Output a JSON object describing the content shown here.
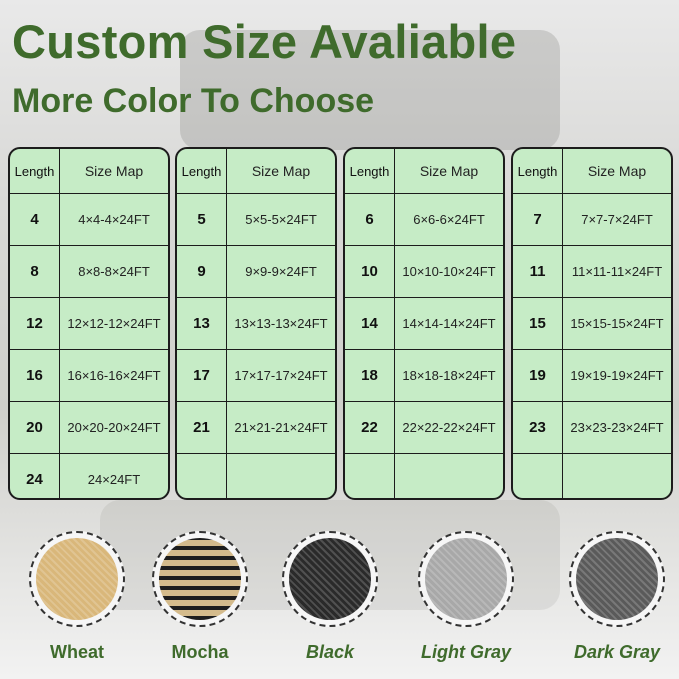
{
  "header": {
    "title": "Custom Size Avaliable",
    "subtitle": "More Color To Choose"
  },
  "tables": [
    {
      "head": [
        "Length",
        "Size Map"
      ],
      "rows": [
        [
          "4",
          "4×4-4×24FT"
        ],
        [
          "8",
          "8×8-8×24FT"
        ],
        [
          "12",
          "12×12-12×24FT"
        ],
        [
          "16",
          "16×16-16×24FT"
        ],
        [
          "20",
          "20×20-20×24FT"
        ],
        [
          "24",
          "24×24FT"
        ]
      ]
    },
    {
      "head": [
        "Length",
        "Size Map"
      ],
      "rows": [
        [
          "5",
          "5×5-5×24FT"
        ],
        [
          "9",
          "9×9-9×24FT"
        ],
        [
          "13",
          "13×13-13×24FT"
        ],
        [
          "17",
          "17×17-17×24FT"
        ],
        [
          "21",
          "21×21-21×24FT"
        ],
        [
          "",
          ""
        ]
      ]
    },
    {
      "head": [
        "Length",
        "Size Map"
      ],
      "rows": [
        [
          "6",
          "6×6-6×24FT"
        ],
        [
          "10",
          "10×10-10×24FT"
        ],
        [
          "14",
          "14×14-14×24FT"
        ],
        [
          "18",
          "18×18-18×24FT"
        ],
        [
          "22",
          "22×22-22×24FT"
        ],
        [
          "",
          ""
        ]
      ]
    },
    {
      "head": [
        "Length",
        "Size Map"
      ],
      "rows": [
        [
          "7",
          "7×7-7×24FT"
        ],
        [
          "11",
          "11×11-11×24FT"
        ],
        [
          "15",
          "15×15-15×24FT"
        ],
        [
          "19",
          "19×19-19×24FT"
        ],
        [
          "23",
          "23×23-23×24FT"
        ],
        [
          "",
          ""
        ]
      ]
    }
  ],
  "colors": [
    {
      "name": "Wheat",
      "swatch": "#d9b77a"
    },
    {
      "name": "Mocha",
      "swatch": "#8a7352"
    },
    {
      "name": "Black",
      "swatch": "#2a2a2a"
    },
    {
      "name": "Light Gray",
      "swatch": "#a8a8a8"
    },
    {
      "name": "Dark Gray",
      "swatch": "#5a5a5a"
    }
  ]
}
